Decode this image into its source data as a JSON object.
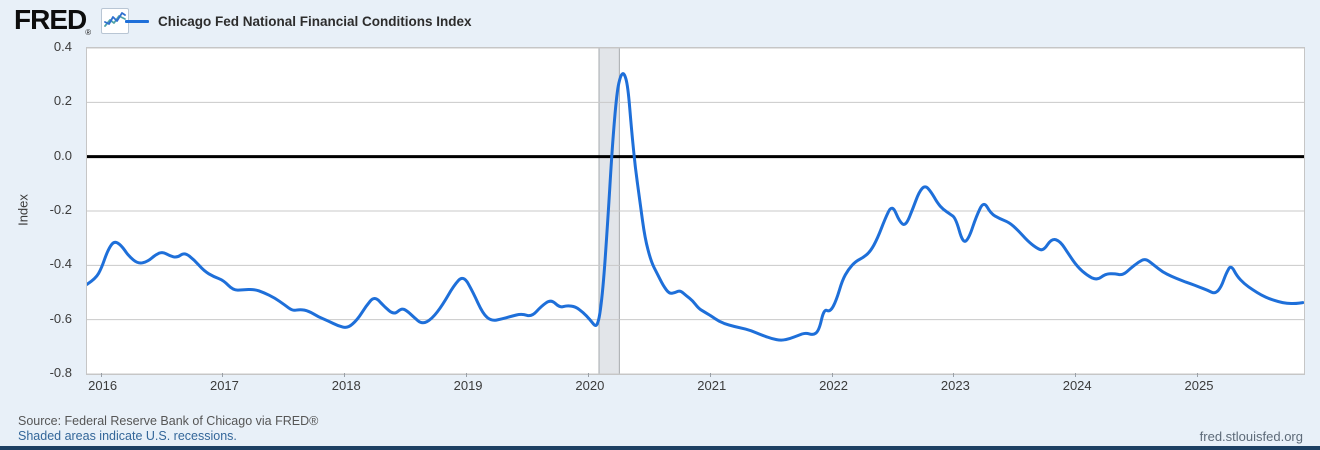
{
  "header": {
    "logo_text": "FRED",
    "registered_mark": "®",
    "legend": {
      "series_label": "Chicago Fed National Financial Conditions Index"
    }
  },
  "footer": {
    "source_line": "Source: Federal Reserve Bank of Chicago via FRED®",
    "recession_note": "Shaded areas indicate U.S. recessions.",
    "site_link": "fred.stlouisfed.org"
  },
  "colors": {
    "series_blue": "#1e6fd9",
    "page_background": "#e8f0f8",
    "plot_background": "#ffffff",
    "gridline": "#c9c9c9",
    "zero_line": "#000000",
    "recession_band_fill": "#e2e5e9",
    "recession_band_edge": "#a5a9ad",
    "axis_text": "#3c3c3c",
    "bottom_bar": "#1d4063",
    "logo_icon_blue": "#2f6fd0",
    "logo_icon_teal": "#4fa3a8"
  },
  "chart_data": {
    "type": "line",
    "title": "Chicago Fed National Financial Conditions Index",
    "xlabel": "",
    "ylabel": "Index",
    "xlim": [
      2015.88,
      2025.87
    ],
    "ylim": [
      -0.8,
      0.4
    ],
    "y_ticks": [
      0.4,
      0.2,
      0.0,
      -0.2,
      -0.4,
      -0.6,
      -0.8
    ],
    "x_ticks": [
      2016,
      2017,
      2018,
      2019,
      2020,
      2021,
      2022,
      2023,
      2024,
      2025
    ],
    "grid": true,
    "legend_position": "top-left",
    "zero_line": 0.0,
    "recession_bands": [
      {
        "start": 2020.083,
        "end": 2020.25
      }
    ],
    "series": [
      {
        "name": "Chicago Fed National Financial Conditions Index",
        "color": "#1e6fd9",
        "x": [
          2015.88,
          2015.95,
          2016.0,
          2016.05,
          2016.1,
          2016.16,
          2016.22,
          2016.3,
          2016.38,
          2016.44,
          2016.5,
          2016.56,
          2016.62,
          2016.68,
          2016.76,
          2016.84,
          2016.92,
          2017.0,
          2017.08,
          2017.16,
          2017.25,
          2017.33,
          2017.42,
          2017.5,
          2017.57,
          2017.63,
          2017.7,
          2017.78,
          2017.86,
          2017.94,
          2018.02,
          2018.1,
          2018.17,
          2018.24,
          2018.32,
          2018.4,
          2018.46,
          2018.5,
          2018.56,
          2018.63,
          2018.71,
          2018.8,
          2018.89,
          2018.97,
          2019.05,
          2019.13,
          2019.2,
          2019.28,
          2019.36,
          2019.45,
          2019.53,
          2019.61,
          2019.69,
          2019.76,
          2019.82,
          2019.89,
          2019.95,
          2020.01,
          2020.07,
          2020.11,
          2020.15,
          2020.19,
          2020.23,
          2020.26,
          2020.29,
          2020.32,
          2020.35,
          2020.38,
          2020.42,
          2020.46,
          2020.51,
          2020.56,
          2020.61,
          2020.66,
          2020.71,
          2020.75,
          2020.8,
          2020.85,
          2020.9,
          2020.95,
          2021.0,
          2021.07,
          2021.15,
          2021.24,
          2021.33,
          2021.42,
          2021.5,
          2021.58,
          2021.65,
          2021.72,
          2021.78,
          2021.84,
          2021.89,
          2021.93,
          2021.98,
          2022.03,
          2022.08,
          2022.13,
          2022.19,
          2022.25,
          2022.31,
          2022.37,
          2022.43,
          2022.49,
          2022.55,
          2022.6,
          2022.66,
          2022.71,
          2022.76,
          2022.81,
          2022.86,
          2022.91,
          2022.96,
          2023.01,
          2023.07,
          2023.12,
          2023.18,
          2023.24,
          2023.3,
          2023.37,
          2023.45,
          2023.52,
          2023.6,
          2023.67,
          2023.73,
          2023.8,
          2023.87,
          2023.94,
          2024.01,
          2024.09,
          2024.17,
          2024.24,
          2024.31,
          2024.38,
          2024.45,
          2024.51,
          2024.57,
          2024.64,
          2024.71,
          2024.78,
          2024.86,
          2024.94,
          2025.01,
          2025.08,
          2025.14,
          2025.19,
          2025.23,
          2025.27,
          2025.32,
          2025.38,
          2025.45,
          2025.52,
          2025.59,
          2025.66,
          2025.73,
          2025.8,
          2025.86
        ],
        "y": [
          -0.47,
          -0.45,
          -0.41,
          -0.345,
          -0.31,
          -0.325,
          -0.365,
          -0.395,
          -0.385,
          -0.362,
          -0.35,
          -0.365,
          -0.372,
          -0.352,
          -0.38,
          -0.42,
          -0.442,
          -0.455,
          -0.492,
          -0.49,
          -0.488,
          -0.5,
          -0.52,
          -0.545,
          -0.568,
          -0.562,
          -0.568,
          -0.59,
          -0.605,
          -0.623,
          -0.632,
          -0.6,
          -0.55,
          -0.512,
          -0.552,
          -0.582,
          -0.558,
          -0.565,
          -0.59,
          -0.617,
          -0.598,
          -0.545,
          -0.475,
          -0.436,
          -0.5,
          -0.578,
          -0.605,
          -0.598,
          -0.588,
          -0.578,
          -0.59,
          -0.55,
          -0.525,
          -0.556,
          -0.548,
          -0.552,
          -0.572,
          -0.6,
          -0.635,
          -0.52,
          -0.27,
          0.03,
          0.24,
          0.3,
          0.31,
          0.26,
          0.1,
          -0.04,
          -0.17,
          -0.3,
          -0.385,
          -0.43,
          -0.475,
          -0.505,
          -0.5,
          -0.492,
          -0.512,
          -0.53,
          -0.558,
          -0.572,
          -0.585,
          -0.607,
          -0.62,
          -0.63,
          -0.64,
          -0.657,
          -0.67,
          -0.677,
          -0.67,
          -0.658,
          -0.648,
          -0.657,
          -0.64,
          -0.56,
          -0.572,
          -0.53,
          -0.455,
          -0.415,
          -0.385,
          -0.372,
          -0.35,
          -0.3,
          -0.23,
          -0.175,
          -0.24,
          -0.256,
          -0.19,
          -0.13,
          -0.105,
          -0.13,
          -0.17,
          -0.195,
          -0.21,
          -0.225,
          -0.32,
          -0.3,
          -0.22,
          -0.163,
          -0.21,
          -0.228,
          -0.242,
          -0.27,
          -0.31,
          -0.335,
          -0.348,
          -0.3,
          -0.312,
          -0.36,
          -0.405,
          -0.437,
          -0.455,
          -0.432,
          -0.43,
          -0.437,
          -0.41,
          -0.388,
          -0.375,
          -0.4,
          -0.425,
          -0.44,
          -0.455,
          -0.468,
          -0.48,
          -0.492,
          -0.505,
          -0.48,
          -0.43,
          -0.398,
          -0.44,
          -0.468,
          -0.49,
          -0.51,
          -0.524,
          -0.534,
          -0.54,
          -0.541,
          -0.537
        ]
      }
    ]
  }
}
